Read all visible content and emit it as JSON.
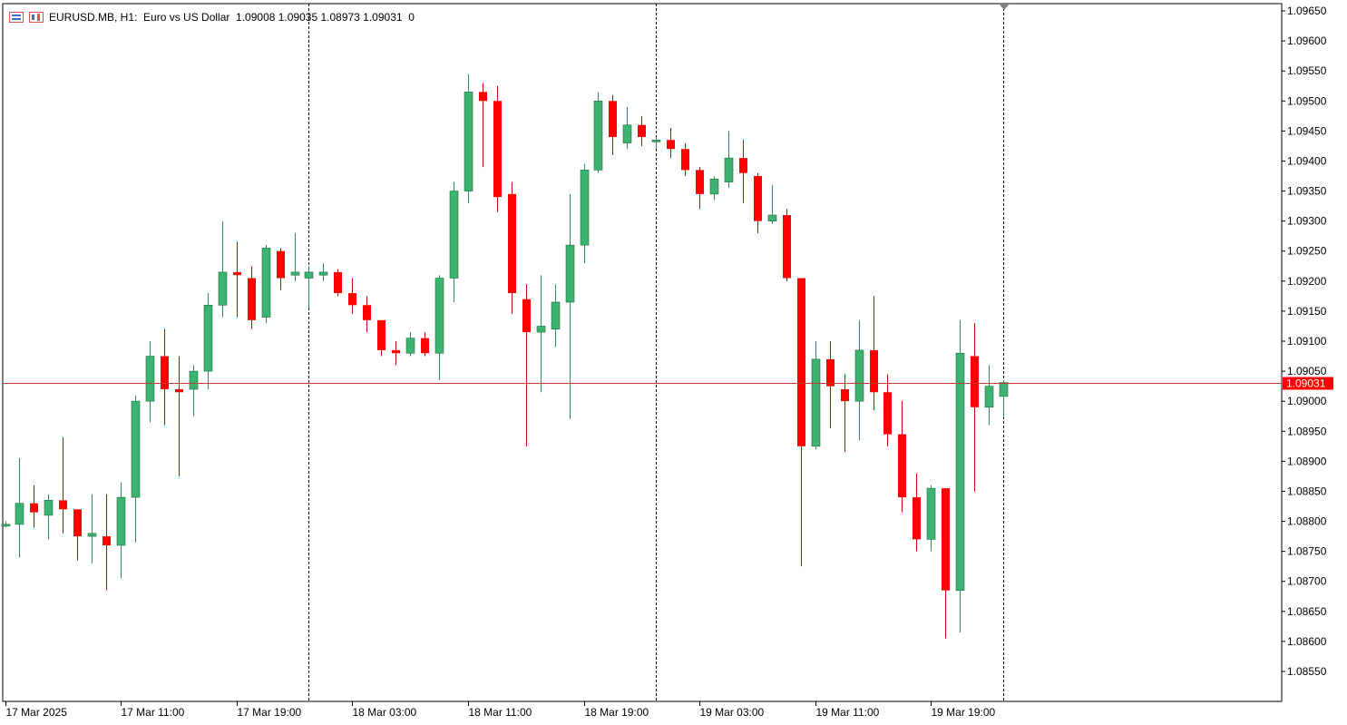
{
  "header": {
    "symbol_info": "EURUSD.MB, H1:  Euro vs US Dollar  1.09008 1.09035 1.08973 1.09031  0",
    "icon_1": "bars-chart-icon",
    "icon_2": "candles-chart-icon"
  },
  "colors": {
    "bull": "#3cb371",
    "bear": "#ff0000",
    "grid_separator": "#000000",
    "current_price_line": "#c0392b",
    "background": "#ffffff"
  },
  "current_price": {
    "value": 1.09031,
    "label": "1.09031"
  },
  "chart_data": {
    "type": "candlestick",
    "title": "",
    "y_axis_ticks": [
      "1.09650",
      "1.09600",
      "1.09550",
      "1.09500",
      "1.09450",
      "1.09400",
      "1.09350",
      "1.09300",
      "1.09250",
      "1.09200",
      "1.09150",
      "1.09100",
      "1.09050",
      "1.09000",
      "1.08950",
      "1.08900",
      "1.08850",
      "1.08800",
      "1.08750",
      "1.08700",
      "1.08650",
      "1.08600",
      "1.08550"
    ],
    "ylim": [
      1.0851,
      1.0966
    ],
    "x_axis_ticks": [
      "17 Mar 2025",
      "17 Mar 11:00",
      "17 Mar 19:00",
      "18 Mar 03:00",
      "18 Mar 11:00",
      "18 Mar 19:00",
      "19 Mar 03:00",
      "19 Mar 11:00",
      "19 Mar 19:00"
    ],
    "x_tick_bar_index": [
      0,
      8,
      16,
      24,
      32,
      40,
      48,
      56,
      64
    ],
    "day_separators_bar_index": [
      21,
      45,
      69
    ],
    "candles": [
      {
        "o": 1.08795,
        "h": 1.088,
        "l": 1.0879,
        "c": 1.08795
      },
      {
        "o": 1.08795,
        "h": 1.08905,
        "l": 1.0874,
        "c": 1.0883
      },
      {
        "o": 1.0883,
        "h": 1.0886,
        "l": 1.0879,
        "c": 1.08815
      },
      {
        "o": 1.0881,
        "h": 1.08845,
        "l": 1.0877,
        "c": 1.08835
      },
      {
        "o": 1.08835,
        "h": 1.0894,
        "l": 1.0878,
        "c": 1.0882
      },
      {
        "o": 1.0882,
        "h": 1.0881,
        "l": 1.08735,
        "c": 1.08775
      },
      {
        "o": 1.08775,
        "h": 1.08845,
        "l": 1.0873,
        "c": 1.0878
      },
      {
        "o": 1.08775,
        "h": 1.08845,
        "l": 1.08685,
        "c": 1.0876
      },
      {
        "o": 1.0876,
        "h": 1.08865,
        "l": 1.08705,
        "c": 1.0884
      },
      {
        "o": 1.0884,
        "h": 1.0901,
        "l": 1.08765,
        "c": 1.09
      },
      {
        "o": 1.09,
        "h": 1.091,
        "l": 1.08965,
        "c": 1.09075
      },
      {
        "o": 1.09075,
        "h": 1.0912,
        "l": 1.0896,
        "c": 1.0902
      },
      {
        "o": 1.0902,
        "h": 1.09075,
        "l": 1.08875,
        "c": 1.09015
      },
      {
        "o": 1.0902,
        "h": 1.0906,
        "l": 1.08975,
        "c": 1.0905
      },
      {
        "o": 1.0905,
        "h": 1.0918,
        "l": 1.0902,
        "c": 1.0916
      },
      {
        "o": 1.0916,
        "h": 1.093,
        "l": 1.0914,
        "c": 1.09215
      },
      {
        "o": 1.09215,
        "h": 1.09265,
        "l": 1.0914,
        "c": 1.0921
      },
      {
        "o": 1.09205,
        "h": 1.09225,
        "l": 1.0912,
        "c": 1.09135
      },
      {
        "o": 1.0914,
        "h": 1.0926,
        "l": 1.0913,
        "c": 1.09255
      },
      {
        "o": 1.0925,
        "h": 1.09255,
        "l": 1.09185,
        "c": 1.09205
      },
      {
        "o": 1.0921,
        "h": 1.0928,
        "l": 1.092,
        "c": 1.09215
      },
      {
        "o": 1.09205,
        "h": 1.09225,
        "l": 1.09155,
        "c": 1.09215
      },
      {
        "o": 1.0921,
        "h": 1.0923,
        "l": 1.092,
        "c": 1.09215
      },
      {
        "o": 1.09215,
        "h": 1.0922,
        "l": 1.09175,
        "c": 1.0918
      },
      {
        "o": 1.0918,
        "h": 1.09205,
        "l": 1.09145,
        "c": 1.0916
      },
      {
        "o": 1.0916,
        "h": 1.09175,
        "l": 1.09115,
        "c": 1.09135
      },
      {
        "o": 1.09135,
        "h": 1.09125,
        "l": 1.09075,
        "c": 1.09085
      },
      {
        "o": 1.09085,
        "h": 1.091,
        "l": 1.0906,
        "c": 1.0908
      },
      {
        "o": 1.0908,
        "h": 1.09115,
        "l": 1.09075,
        "c": 1.09105
      },
      {
        "o": 1.09105,
        "h": 1.09115,
        "l": 1.09075,
        "c": 1.0908
      },
      {
        "o": 1.0908,
        "h": 1.0921,
        "l": 1.09035,
        "c": 1.09205
      },
      {
        "o": 1.09205,
        "h": 1.09365,
        "l": 1.09165,
        "c": 1.0935
      },
      {
        "o": 1.0935,
        "h": 1.09545,
        "l": 1.0933,
        "c": 1.09515
      },
      {
        "o": 1.09515,
        "h": 1.0953,
        "l": 1.0939,
        "c": 1.095
      },
      {
        "o": 1.095,
        "h": 1.09525,
        "l": 1.09315,
        "c": 1.0934
      },
      {
        "o": 1.09345,
        "h": 1.09365,
        "l": 1.09145,
        "c": 1.0918
      },
      {
        "o": 1.0917,
        "h": 1.09195,
        "l": 1.08925,
        "c": 1.09115
      },
      {
        "o": 1.09115,
        "h": 1.0921,
        "l": 1.09015,
        "c": 1.09125
      },
      {
        "o": 1.0912,
        "h": 1.09195,
        "l": 1.0909,
        "c": 1.09165
      },
      {
        "o": 1.09165,
        "h": 1.09345,
        "l": 1.0897,
        "c": 1.0926
      },
      {
        "o": 1.0926,
        "h": 1.09395,
        "l": 1.0923,
        "c": 1.09385
      },
      {
        "o": 1.09385,
        "h": 1.09515,
        "l": 1.0938,
        "c": 1.095
      },
      {
        "o": 1.095,
        "h": 1.0951,
        "l": 1.0941,
        "c": 1.0944
      },
      {
        "o": 1.0943,
        "h": 1.0949,
        "l": 1.0942,
        "c": 1.0946
      },
      {
        "o": 1.0946,
        "h": 1.09475,
        "l": 1.09425,
        "c": 1.0944
      },
      {
        "o": 1.09435,
        "h": 1.0944,
        "l": 1.0942,
        "c": 1.09435
      },
      {
        "o": 1.09435,
        "h": 1.09455,
        "l": 1.09405,
        "c": 1.0942
      },
      {
        "o": 1.0942,
        "h": 1.0943,
        "l": 1.09375,
        "c": 1.09385
      },
      {
        "o": 1.09385,
        "h": 1.0939,
        "l": 1.0932,
        "c": 1.09345
      },
      {
        "o": 1.09345,
        "h": 1.09375,
        "l": 1.09335,
        "c": 1.0937
      },
      {
        "o": 1.09365,
        "h": 1.0945,
        "l": 1.09355,
        "c": 1.09405
      },
      {
        "o": 1.09405,
        "h": 1.09435,
        "l": 1.0933,
        "c": 1.0938
      },
      {
        "o": 1.09375,
        "h": 1.0938,
        "l": 1.0928,
        "c": 1.093
      },
      {
        "o": 1.093,
        "h": 1.0936,
        "l": 1.09295,
        "c": 1.0931
      },
      {
        "o": 1.0931,
        "h": 1.0932,
        "l": 1.092,
        "c": 1.09205
      },
      {
        "o": 1.09205,
        "h": 1.09195,
        "l": 1.08725,
        "c": 1.08925
      },
      {
        "o": 1.08925,
        "h": 1.091,
        "l": 1.0892,
        "c": 1.0907
      },
      {
        "o": 1.0907,
        "h": 1.091,
        "l": 1.08955,
        "c": 1.09025
      },
      {
        "o": 1.0902,
        "h": 1.09045,
        "l": 1.08915,
        "c": 1.09
      },
      {
        "o": 1.09,
        "h": 1.09135,
        "l": 1.08935,
        "c": 1.09085
      },
      {
        "o": 1.09085,
        "h": 1.09175,
        "l": 1.08985,
        "c": 1.09015
      },
      {
        "o": 1.09015,
        "h": 1.09045,
        "l": 1.08925,
        "c": 1.08945
      },
      {
        "o": 1.08945,
        "h": 1.09,
        "l": 1.08815,
        "c": 1.0884
      },
      {
        "o": 1.0884,
        "h": 1.0888,
        "l": 1.0875,
        "c": 1.0877
      },
      {
        "o": 1.0877,
        "h": 1.0886,
        "l": 1.0875,
        "c": 1.08855
      },
      {
        "o": 1.08855,
        "h": 1.08855,
        "l": 1.08605,
        "c": 1.08685
      },
      {
        "o": 1.08685,
        "h": 1.09135,
        "l": 1.08615,
        "c": 1.0908
      },
      {
        "o": 1.09075,
        "h": 1.0913,
        "l": 1.0885,
        "c": 1.0899
      },
      {
        "o": 1.0899,
        "h": 1.0906,
        "l": 1.0896,
        "c": 1.09025
      },
      {
        "o": 1.09008,
        "h": 1.09035,
        "l": 1.08973,
        "c": 1.09031
      }
    ]
  }
}
